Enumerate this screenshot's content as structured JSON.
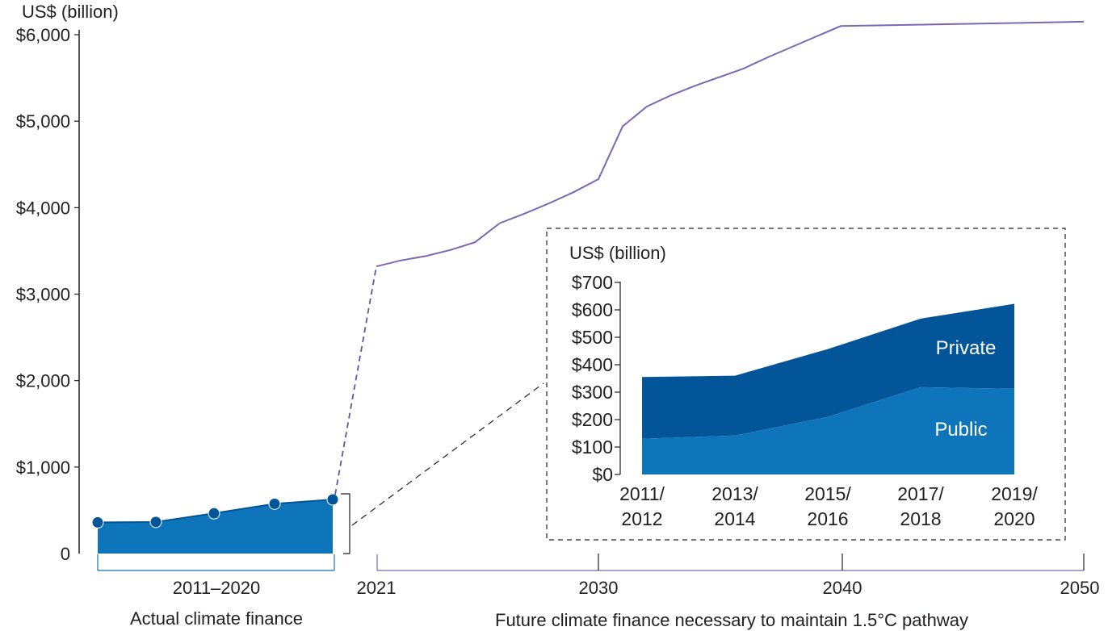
{
  "chart_data": [
    {
      "type": "area_line",
      "title": "",
      "ylabel": "US$ (billion)",
      "ylim": [
        0,
        6000
      ],
      "yticks": [
        {
          "value": 0,
          "label": "0"
        },
        {
          "value": 1000,
          "label": "$1,000"
        },
        {
          "value": 2000,
          "label": "$2,000"
        },
        {
          "value": 3000,
          "label": "$3,000"
        },
        {
          "value": 4000,
          "label": "$4,000"
        },
        {
          "value": 5000,
          "label": "$5,000"
        },
        {
          "value": 6000,
          "label": "$6,000"
        }
      ],
      "actual": {
        "name": "Actual climate finance",
        "period_label": "2011–2020",
        "x": [
          "2011/2012",
          "2013/2014",
          "2015/2016",
          "2017/2018",
          "2019/2020"
        ],
        "values": [
          360,
          365,
          465,
          575,
          625
        ],
        "color": "#0f75bb"
      },
      "future": {
        "name": "Future climate finance necessary to maintain 1.5°C pathway",
        "x": [
          2021,
          2022,
          2023,
          2024,
          2025,
          2026,
          2027,
          2028,
          2029,
          2030,
          2031,
          2032,
          2033,
          2034,
          2035,
          2036,
          2037,
          2038,
          2039,
          2040,
          2050
        ],
        "values": [
          3320,
          3390,
          3440,
          3510,
          3600,
          3820,
          3930,
          4050,
          4180,
          4330,
          4940,
          5170,
          5300,
          5410,
          5510,
          5610,
          5740,
          5860,
          5980,
          6100,
          6150
        ],
        "color": "#7b68b5"
      },
      "xticks": [
        "2021",
        "2030",
        "2040",
        "2050"
      ]
    },
    {
      "type": "stacked_area",
      "ylabel": "US$ (billion)",
      "ylim": [
        0,
        700
      ],
      "yticks": [
        {
          "value": 0,
          "label": "$0"
        },
        {
          "value": 100,
          "label": "$100"
        },
        {
          "value": 200,
          "label": "$200"
        },
        {
          "value": 300,
          "label": "$300"
        },
        {
          "value": 400,
          "label": "$400"
        },
        {
          "value": 500,
          "label": "$500"
        },
        {
          "value": 600,
          "label": "$600"
        },
        {
          "value": 700,
          "label": "$700"
        }
      ],
      "categories": [
        {
          "line1": "2011/",
          "line2": "2012"
        },
        {
          "line1": "2013/",
          "line2": "2014"
        },
        {
          "line1": "2015/",
          "line2": "2016"
        },
        {
          "line1": "2017/",
          "line2": "2018"
        },
        {
          "line1": "2019/",
          "line2": "2020"
        }
      ],
      "series": [
        {
          "name": "Public",
          "values": [
            130,
            142,
            210,
            318,
            312
          ],
          "color": "#0f75bb"
        },
        {
          "name": "Private",
          "values": [
            225,
            218,
            247,
            250,
            310
          ],
          "color": "#03559a"
        }
      ]
    }
  ]
}
